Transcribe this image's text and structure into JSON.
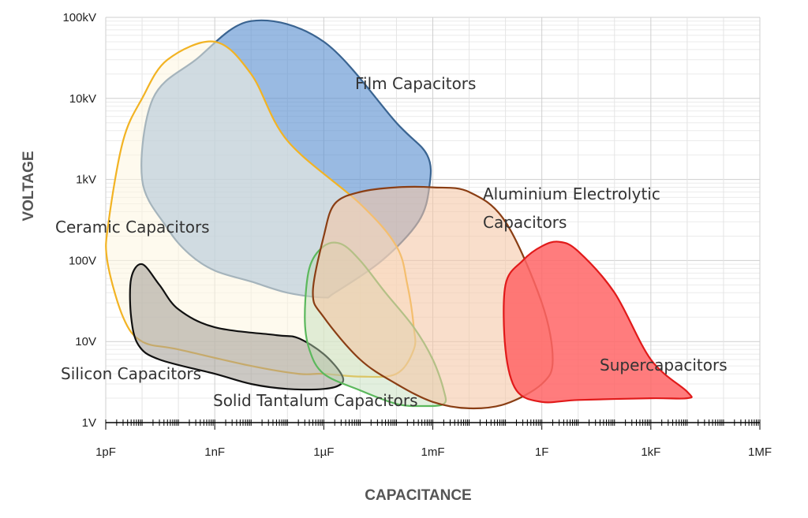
{
  "chart_data": {
    "type": "area",
    "title": "",
    "xlabel": "CAPACITANCE",
    "ylabel": "VOLTAGE",
    "xscale": "log",
    "yscale": "log",
    "grid": true,
    "xlim": [
      "1pF",
      "1MF"
    ],
    "ylim": [
      "1V",
      "100kV"
    ],
    "x_ticks": [
      "1pF",
      "1nF",
      "1µF",
      "1mF",
      "1F",
      "1kF",
      "1MF"
    ],
    "y_ticks": [
      "1V",
      "10V",
      "100V",
      "1kV",
      "10kV",
      "100kV"
    ],
    "series": [
      {
        "name": "Film Capacitors",
        "color": "#5b8fd0",
        "stroke": "#3a6491",
        "points": [
          [
            "20pF",
            "10kV"
          ],
          [
            "300pF",
            "30kV"
          ],
          [
            "10nF",
            "90kV"
          ],
          [
            "1µF",
            "50kV"
          ],
          [
            "100µF",
            "5kV"
          ],
          [
            "0.7mF",
            "2kV"
          ],
          [
            "0.8mF",
            "800V"
          ],
          [
            "0.4mF",
            "300V"
          ],
          [
            "40µF",
            "100V"
          ],
          [
            "2µF",
            "40V"
          ],
          [
            "1µF",
            "35V"
          ],
          [
            "0.1µF",
            "40V"
          ],
          [
            "10nF",
            "55V"
          ],
          [
            "1nF",
            "75V"
          ],
          [
            "0.2nF",
            "120V"
          ],
          [
            "50pF",
            "250V"
          ],
          [
            "10pF",
            "1kV"
          ],
          [
            "20pF",
            "10kV"
          ]
        ]
      },
      {
        "name": "Ceramic Capacitors",
        "color": "#fdf6e0",
        "stroke": "#f2b323",
        "points": [
          [
            "1.1pF",
            "100V"
          ],
          [
            "1.2pF",
            "300V"
          ],
          [
            "3pF",
            "3kV"
          ],
          [
            "10pF",
            "10kV"
          ],
          [
            "50pF",
            "30kV"
          ],
          [
            "1nF",
            "50kV"
          ],
          [
            "10nF",
            "20kV"
          ],
          [
            "100nF",
            "3kV"
          ],
          [
            "10µF",
            "500V"
          ],
          [
            "100µF",
            "150V"
          ],
          [
            "200µF",
            "50V"
          ],
          [
            "300µF",
            "15V"
          ],
          [
            "300µF",
            "8V"
          ],
          [
            "100µF",
            "4V"
          ],
          [
            "10µF",
            "3.7V"
          ],
          [
            "1µF",
            "4V"
          ],
          [
            "0.2µF",
            "4V"
          ],
          [
            "10nF",
            "5V"
          ],
          [
            "0.1nF",
            "8V"
          ],
          [
            "10pF",
            "10V"
          ],
          [
            "3pF",
            "20V"
          ],
          [
            "1.1pF",
            "100V"
          ]
        ]
      },
      {
        "name": "Silicon Capacitors",
        "color": "#a9a39b",
        "stroke": "#111111",
        "points": [
          [
            "5pF",
            "60V"
          ],
          [
            "10pF",
            "90V"
          ],
          [
            "30pF",
            "50V"
          ],
          [
            "100pF",
            "25V"
          ],
          [
            "1nF",
            "15V"
          ],
          [
            "50nF",
            "12V"
          ],
          [
            "200nF",
            "11V"
          ],
          [
            "1µF",
            "7V"
          ],
          [
            "3µF",
            "4V"
          ],
          [
            "3µF",
            "3V"
          ],
          [
            "1µF",
            "2.6V"
          ],
          [
            "100nF",
            "2.6V"
          ],
          [
            "10nF",
            "3V"
          ],
          [
            "1nF",
            "4V"
          ],
          [
            "30pF",
            "6V"
          ],
          [
            "8pF",
            "9V"
          ],
          [
            "5pF",
            "20V"
          ],
          [
            "5pF",
            "60V"
          ]
        ]
      },
      {
        "name": "Solid Tantalum Capacitors",
        "color": "#bfdcb6",
        "stroke": "#5bb85c",
        "points": [
          [
            "0.4µF",
            "80V"
          ],
          [
            "1µF",
            "150V"
          ],
          [
            "3µF",
            "160V"
          ],
          [
            "10µF",
            "100V"
          ],
          [
            "50µF",
            "40V"
          ],
          [
            "300µF",
            "15V"
          ],
          [
            "1mF",
            "6V"
          ],
          [
            "2mF",
            "2.5V"
          ],
          [
            "2mF",
            "1.7V"
          ],
          [
            "0.5mF",
            "1.6V"
          ],
          [
            "100µF",
            "1.7V"
          ],
          [
            "10µF",
            "2.5V"
          ],
          [
            "1µF",
            "4V"
          ],
          [
            "0.4µF",
            "8V"
          ],
          [
            "0.3µF",
            "20V"
          ],
          [
            "0.4µF",
            "80V"
          ]
        ]
      },
      {
        "name": "Aluminium Electrolytic Capacitors",
        "color": "#f5c7a5",
        "stroke": "#8a3e14",
        "points": [
          [
            "1µF",
            "200V"
          ],
          [
            "2µF",
            "500V"
          ],
          [
            "10µF",
            "700V"
          ],
          [
            "100µF",
            "800V"
          ],
          [
            "1mF",
            "800V"
          ],
          [
            "10mF",
            "700V"
          ],
          [
            "100mF",
            "300V"
          ],
          [
            "1F",
            "30V"
          ],
          [
            "2F",
            "6V"
          ],
          [
            "1F",
            "3V"
          ],
          [
            "0.1F",
            "1.7V"
          ],
          [
            "10mF",
            "1.5V"
          ],
          [
            "1mF",
            "1.8V"
          ],
          [
            "100µF",
            "3V"
          ],
          [
            "10µF",
            "6V"
          ],
          [
            "1µF",
            "20V"
          ],
          [
            "0.5µF",
            "40V"
          ],
          [
            "1µF",
            "200V"
          ]
        ]
      },
      {
        "name": "Supercapacitors",
        "color": "#ff6566",
        "stroke": "#e11a1a",
        "points": [
          [
            "0.1F",
            "50V"
          ],
          [
            "0.3F",
            "100V"
          ],
          [
            "1F",
            "150V"
          ],
          [
            "3F",
            "170V"
          ],
          [
            "10F",
            "130V"
          ],
          [
            "100F",
            "40V"
          ],
          [
            "1kF",
            "6V"
          ],
          [
            "10kF",
            "2.4V"
          ],
          [
            "10kF",
            "2V"
          ],
          [
            "1kF",
            "2V"
          ],
          [
            "10F",
            "1.9V"
          ],
          [
            "1F",
            "1.8V"
          ],
          [
            "0.2F",
            "2.5V"
          ],
          [
            "0.1F",
            "8V"
          ],
          [
            "0.1F",
            "50V"
          ]
        ]
      }
    ],
    "labels": {
      "film": "Film Capacitors",
      "ceramic": "Ceramic Capacitors",
      "silicon": "Silicon Capacitors",
      "tantalum": "Solid Tantalum Capacitors",
      "alu_line1": "Aluminium Electrolytic",
      "alu_line2": "Capacitors",
      "super": "Supercapacitors"
    }
  }
}
